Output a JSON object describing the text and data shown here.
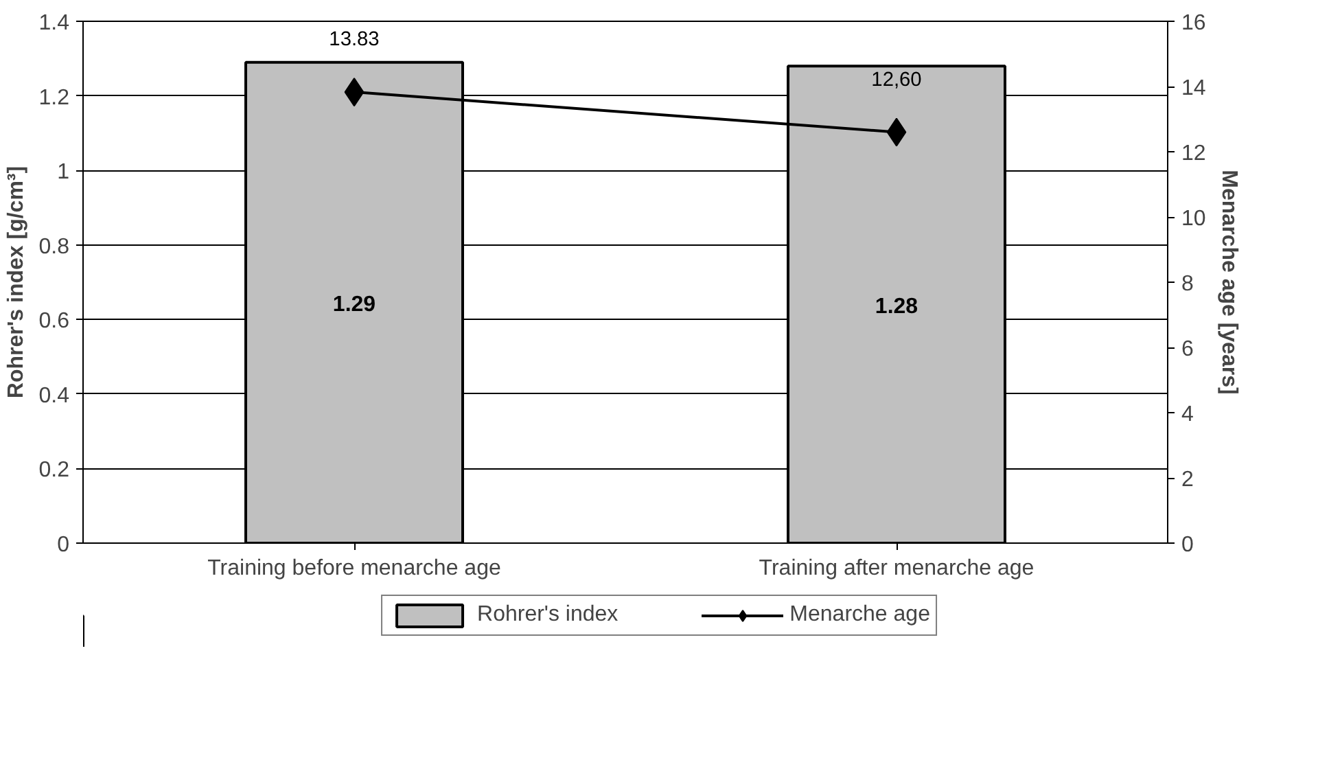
{
  "chart_data": {
    "type": "bar",
    "categories": [
      "Training before menarche age",
      "Training after menarche age"
    ],
    "ylabel": "Rohrer's index [g/cm³]",
    "y2label": "Menarche age [years]",
    "ylim": [
      0,
      1.4
    ],
    "yticks": [
      0,
      0.2,
      0.4,
      0.6,
      0.8,
      1,
      1.2,
      1.4
    ],
    "y2lim": [
      0,
      16
    ],
    "y2ticks": [
      0,
      2,
      4,
      6,
      8,
      10,
      12,
      14,
      16
    ],
    "grid": "y",
    "legend": "bottom",
    "marker": "diamond",
    "line_style": "solid",
    "series": [
      {
        "name": "Rohrer's index",
        "color": "#c0c0c0",
        "values": [
          1.29,
          1.28
        ],
        "value_labels": [
          "1.29",
          "1.28"
        ]
      },
      {
        "name": "Menarche age",
        "type": "line",
        "axis": "y2",
        "color": "#000000",
        "values": [
          13.83,
          12.6
        ],
        "value_labels": [
          "13.83",
          "12,60"
        ]
      }
    ]
  }
}
